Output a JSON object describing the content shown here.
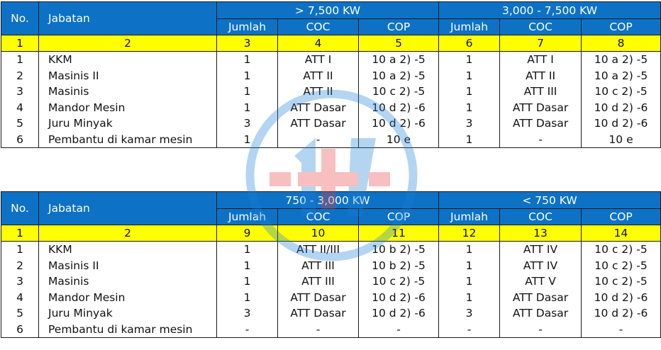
{
  "tables": [
    {
      "headers": {
        "no": "No.",
        "jabatan": "Jabatan",
        "group_a": "> 7,500 KW",
        "group_b": "3,000 - 7,500 KW",
        "sub": [
          "Jumlah",
          "COC",
          "COP",
          "Jumlah",
          "COC",
          "COP"
        ]
      },
      "index_row": [
        "1",
        "2",
        "3",
        "4",
        "5",
        "6",
        "7",
        "8"
      ],
      "rows": [
        [
          "1",
          "KKM",
          "1",
          "ATT I",
          "10 a 2) -5",
          "1",
          "ATT I",
          "10 a 2) -5"
        ],
        [
          "2",
          "Masinis II",
          "1",
          "ATT II",
          "10 a 2) -5",
          "1",
          "ATT II",
          "10 a 2) -5"
        ],
        [
          "3",
          "Masinis",
          "1",
          "ATT II",
          "10 c 2) -5",
          "1",
          "ATT III",
          "10 c 2) -5"
        ],
        [
          "4",
          "Mandor Mesin",
          "1",
          "ATT Dasar",
          "10 d 2) -6",
          "1",
          "ATT Dasar",
          "10 d 2) -6"
        ],
        [
          "5",
          "Juru Minyak",
          "3",
          "ATT Dasar",
          "10 d 2) -6",
          "3",
          "ATT Dasar",
          "10 d 2) -6"
        ],
        [
          "6",
          "Pembantu di kamar mesin",
          "1",
          "-",
          "10 e",
          "1",
          "-",
          "10 e"
        ]
      ]
    },
    {
      "headers": {
        "no": "No.",
        "jabatan": "Jabatan",
        "group_a": "750 - 3,000 KW",
        "group_b": "< 750 KW",
        "sub": [
          "Jumlah",
          "COC",
          "COP",
          "Jumlah",
          "COC",
          "COP"
        ]
      },
      "index_row": [
        "1",
        "2",
        "9",
        "10",
        "11",
        "12",
        "13",
        "14"
      ],
      "rows": [
        [
          "1",
          "KKM",
          "1",
          "ATT II/III",
          "10 b 2) -5",
          "1",
          "ATT IV",
          "10 c 2) -5"
        ],
        [
          "2",
          "Masinis II",
          "1",
          "ATT III",
          "10 b 2) -5",
          "1",
          "ATT IV",
          "10 c 2) -5"
        ],
        [
          "3",
          "Masinis",
          "1",
          "ATT III",
          "10 c 2) -5",
          "1",
          "ATT V",
          "10 c 2) -5"
        ],
        [
          "4",
          "Mandor Mesin",
          "1",
          "ATT Dasar",
          "10 d 2) -6",
          "1",
          "ATT Dasar",
          "10 d 2) -6"
        ],
        [
          "5",
          "Juru Minyak",
          "3",
          "ATT Dasar",
          "10 d 2) -6",
          "3",
          "ATT Dasar",
          "10 d 2) -6"
        ],
        [
          "6",
          "Pembantu di kamar mesin",
          "-",
          "-",
          "-",
          "-",
          "-",
          "-"
        ]
      ]
    }
  ],
  "colors": {
    "header_blue": "#0d72c6",
    "index_yellow": "#ffff00",
    "watermark_blue": "#1a7fd6",
    "watermark_red": "#e83a3a"
  },
  "watermark": {
    "icon": "medical-cross-logo-icon"
  }
}
